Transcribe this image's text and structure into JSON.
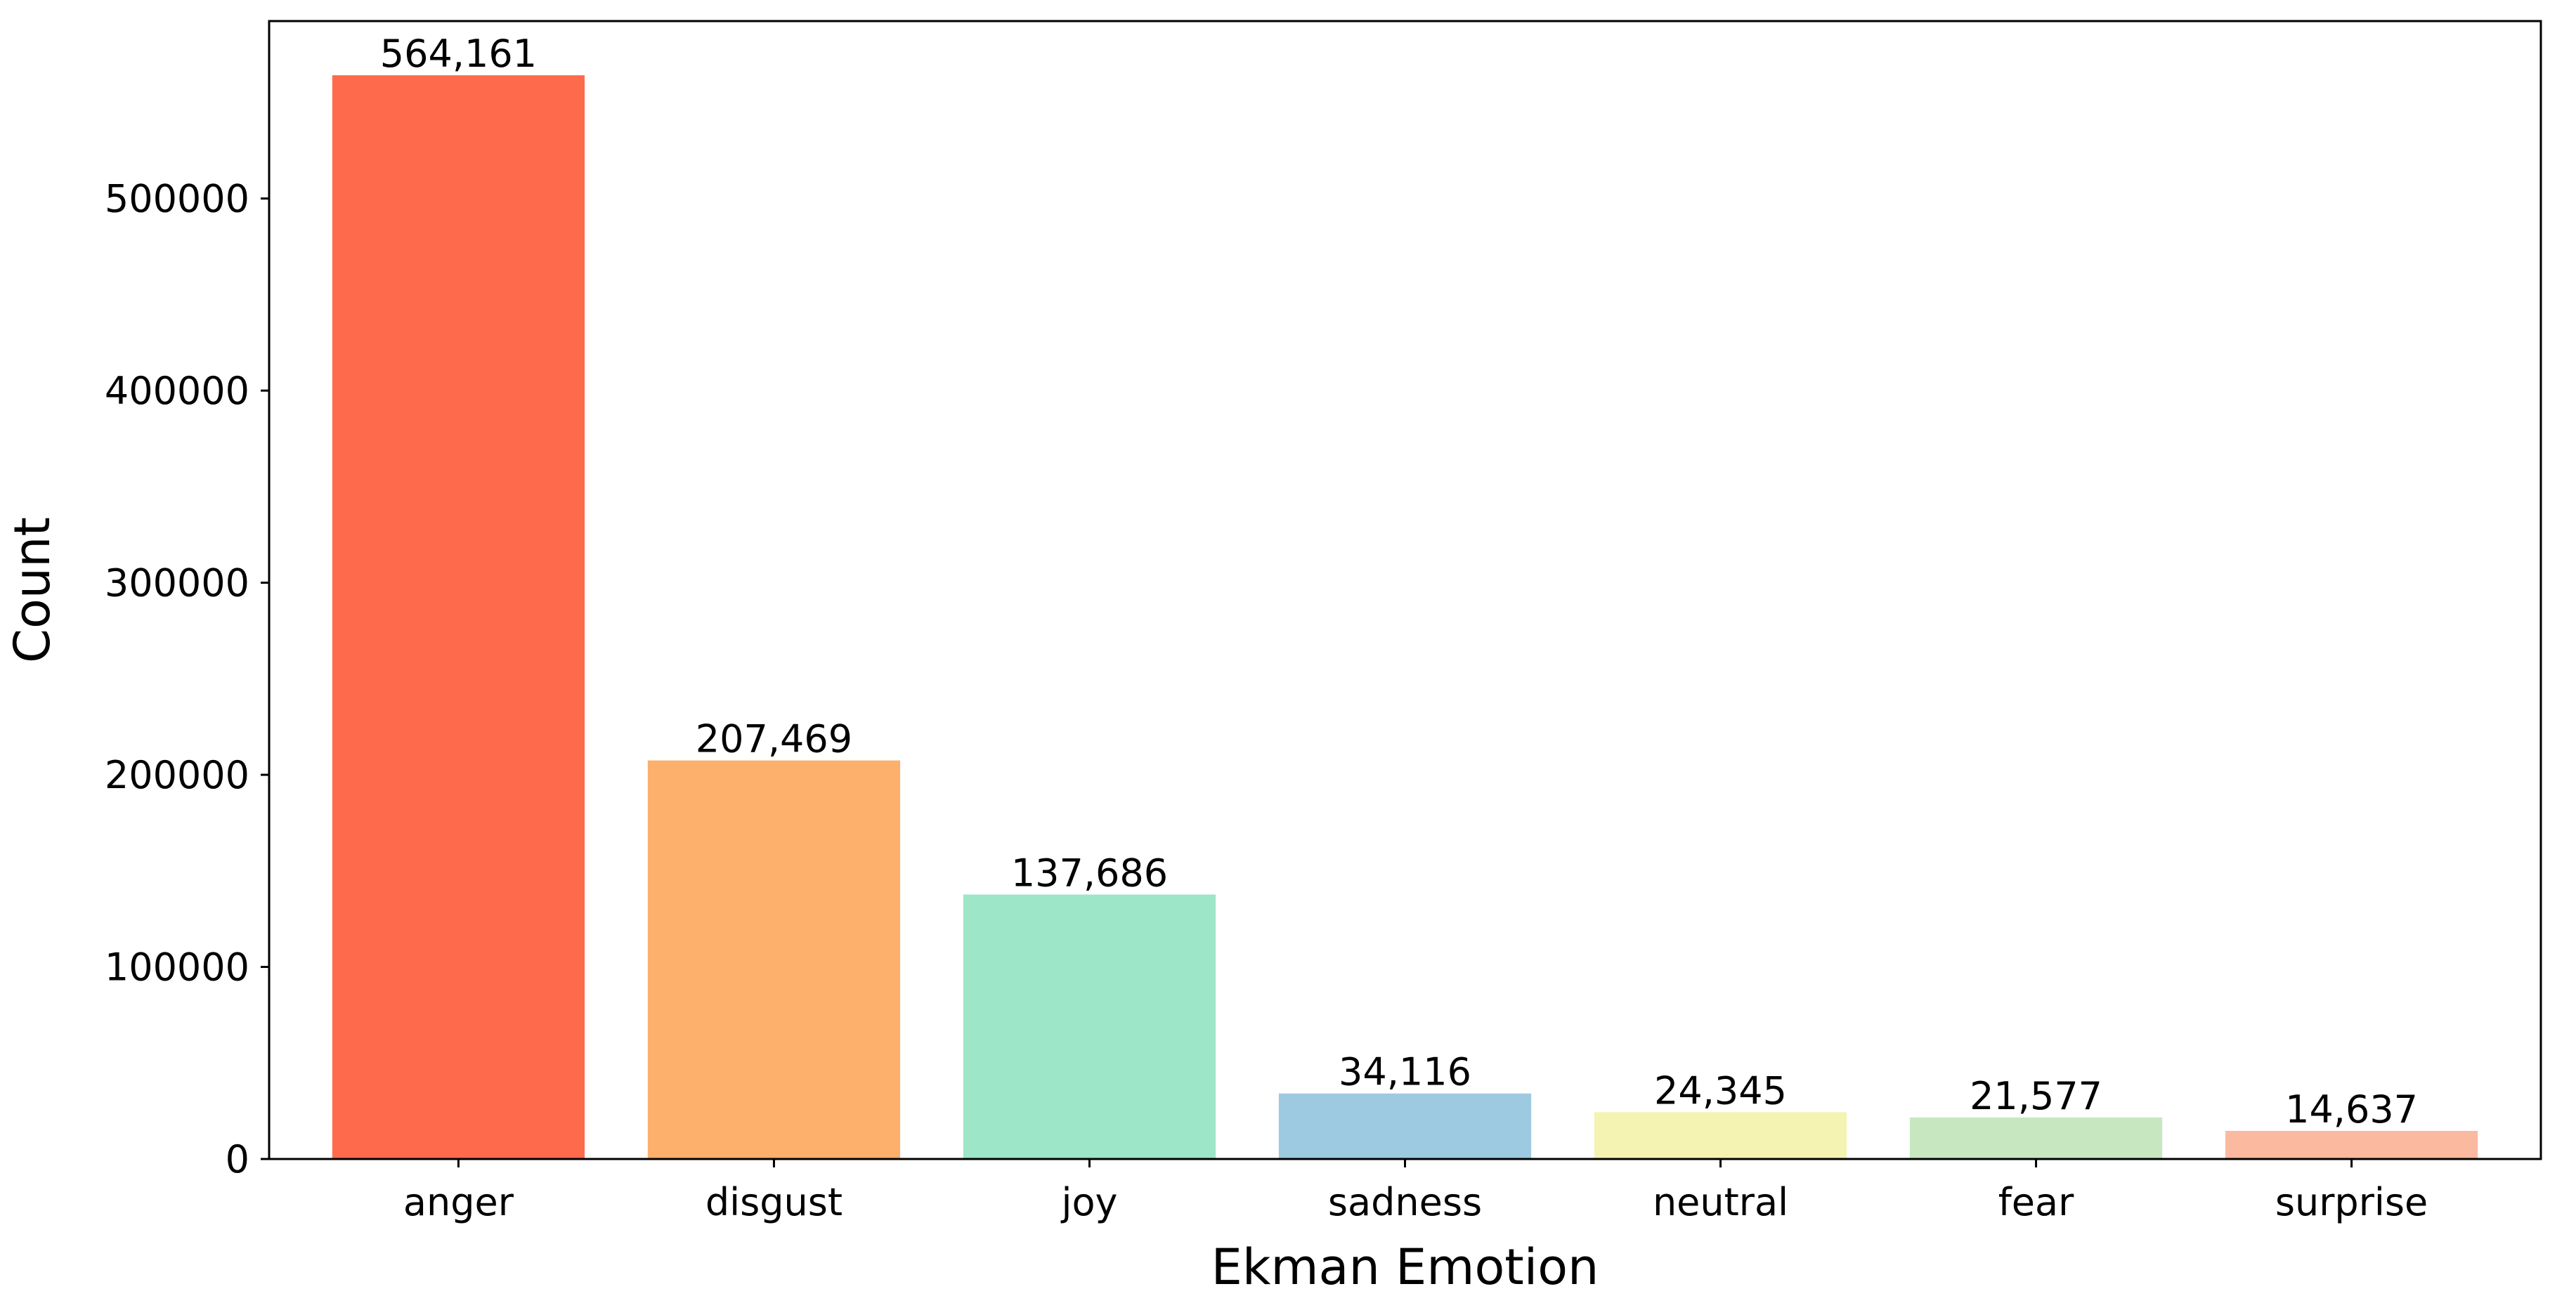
{
  "chart_data": {
    "type": "bar",
    "title": "",
    "xlabel": "Ekman Emotion",
    "ylabel": "Count",
    "categories": [
      "anger",
      "disgust",
      "joy",
      "sadness",
      "neutral",
      "fear",
      "surprise"
    ],
    "values": [
      564161,
      207469,
      137686,
      34116,
      24345,
      21577,
      14637
    ],
    "data_labels": [
      "564,161",
      "207,469",
      "137,686",
      "34,116",
      "24,345",
      "21,577",
      "14,637"
    ],
    "colors": [
      "#fe6b4c",
      "#fdaf6c",
      "#9de6c8",
      "#9ecae1",
      "#f4f3b1",
      "#c6e7bf",
      "#fbb9a0"
    ],
    "ylim": [
      0,
      592369
    ],
    "yticks": [
      0,
      100000,
      200000,
      300000,
      400000,
      500000
    ],
    "ytick_labels": [
      "0",
      "100000",
      "200000",
      "300000",
      "400000",
      "500000"
    ],
    "grid": false,
    "legend": null
  }
}
